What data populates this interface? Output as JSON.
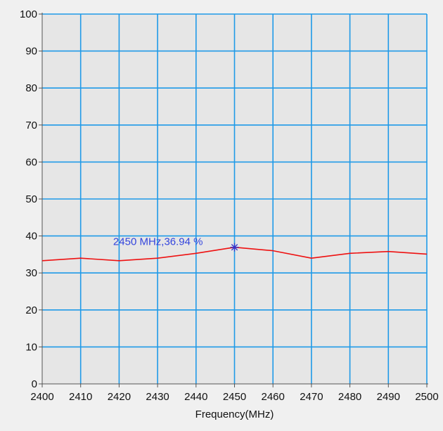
{
  "chart_data": {
    "type": "line",
    "title": "",
    "xlabel": "Frequency(MHz)",
    "ylabel": "",
    "xlim": [
      2400,
      2500
    ],
    "ylim": [
      0,
      100
    ],
    "x_ticks": [
      2400,
      2410,
      2420,
      2430,
      2440,
      2450,
      2460,
      2470,
      2480,
      2490,
      2500
    ],
    "y_ticks": [
      0,
      10,
      20,
      30,
      40,
      50,
      60,
      70,
      80,
      90,
      100
    ],
    "grid": true,
    "legend": "none",
    "series": [
      {
        "x": [
          2400,
          2410,
          2420,
          2430,
          2440,
          2450,
          2460,
          2470,
          2480,
          2490,
          2500
        ],
        "y": [
          33.3,
          34.0,
          33.3,
          34.0,
          35.3,
          36.94,
          36.0,
          34.0,
          35.3,
          35.8,
          35.1
        ]
      }
    ],
    "marker": {
      "x": 2450,
      "y": 36.94,
      "label": "2450 MHz,36.94 %"
    },
    "colors": {
      "background": "#f0f0f0",
      "plot_background": "#e6e6e6",
      "grid": "#1f9ae8",
      "line": "#ee1111",
      "marker": "#3333cc",
      "annotation": "#3344dd"
    }
  }
}
